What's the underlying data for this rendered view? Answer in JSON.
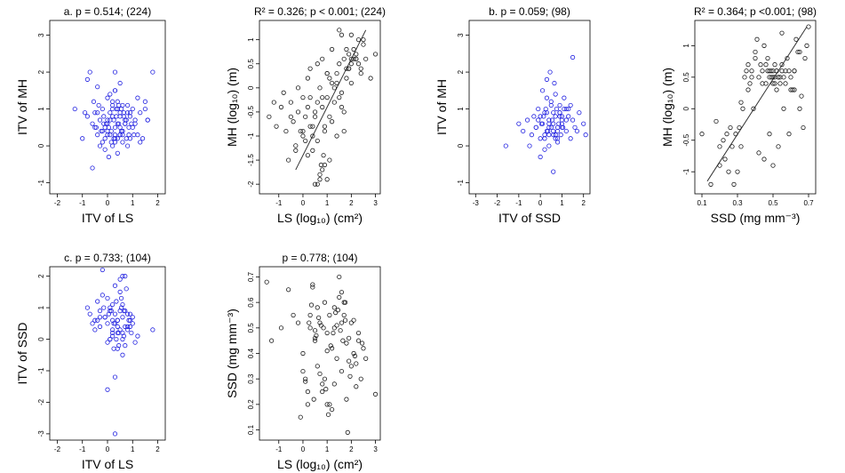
{
  "chart_data": [
    {
      "id": "a1",
      "type": "scatter",
      "title": "a. p = 0.514; (224)",
      "xlabel": "ITV of LS",
      "ylabel": "ITV of MH",
      "xlim": [
        -2.3,
        2.3
      ],
      "ylim": [
        -1.3,
        3.4
      ],
      "xticks": [
        -2,
        -1,
        0,
        1,
        2
      ],
      "yticks": [
        -1,
        0,
        1,
        2,
        3
      ],
      "color": "#1f1fe0",
      "x": [
        -1.3,
        -1.0,
        -0.9,
        -0.8,
        -0.7,
        -0.6,
        -0.55,
        -0.5,
        -0.45,
        -0.4,
        -0.35,
        -0.3,
        -0.25,
        -0.2,
        -0.15,
        -0.1,
        -0.05,
        0.0,
        0.05,
        0.1,
        0.15,
        0.2,
        0.25,
        0.3,
        0.35,
        0.4,
        0.45,
        0.5,
        0.55,
        0.6,
        0.65,
        0.7,
        0.75,
        0.8,
        0.85,
        0.9,
        0.95,
        1.0,
        1.05,
        1.1,
        1.2,
        1.3,
        1.4,
        1.5,
        1.6,
        1.8,
        -0.2,
        0.0,
        0.1,
        0.2,
        0.3,
        0.4,
        0.5,
        0.6,
        0.7,
        0.1,
        0.2,
        0.3,
        0.4,
        0.5,
        -0.3,
        -0.1,
        0.0,
        0.2,
        0.3,
        0.4,
        0.6,
        0.8,
        1.0,
        0.3,
        -0.6,
        0.3,
        0.5,
        0.9,
        1.2,
        0.0,
        0.2,
        0.4,
        0.6,
        0.8,
        -0.5,
        -0.2,
        0.1,
        0.3,
        0.5,
        0.7,
        0.9,
        -0.4,
        0.0,
        0.35,
        0.6,
        1.1,
        -0.1,
        0.25,
        0.45,
        0.55,
        0.65,
        0.75,
        0.15,
        0.05,
        -0.8,
        -0.4,
        1.6,
        1.3,
        0.85,
        -0.15,
        0.5,
        1.5
      ],
      "y": [
        1.0,
        0.2,
        0.9,
        0.8,
        2.0,
        0.6,
        1.2,
        0.9,
        0.5,
        0.3,
        1.1,
        0.7,
        0.4,
        1.0,
        0.8,
        0.2,
        0.6,
        1.3,
        0.5,
        0.9,
        0.4,
        1.1,
        0.7,
        0.3,
        0.8,
        1.2,
        0.6,
        0.5,
        1.0,
        0.4,
        0.9,
        0.7,
        0.2,
        1.1,
        0.5,
        0.8,
        0.6,
        1.0,
        0.3,
        0.7,
        1.3,
        0.9,
        0.2,
        1.0,
        0.7,
        2.0,
        0.1,
        0.6,
        0.3,
        0.8,
        0.5,
        0.2,
        0.9,
        0.4,
        0.6,
        1.4,
        1.2,
        1.5,
        1.0,
        0.3,
        0.0,
        -0.1,
        0.4,
        0.0,
        0.2,
        -0.2,
        0.1,
        0.0,
        0.5,
        2.0,
        -0.6,
        1.5,
        1.7,
        0.9,
        0.3,
        0.7,
        1.0,
        0.6,
        0.3,
        0.9,
        0.5,
        0.4,
        0.7,
        0.1,
        0.8,
        0.6,
        0.2,
        0.9,
        0.3,
        1.0,
        1.1,
        0.6,
        0.5,
        0.2,
        1.1,
        0.4,
        0.8,
        0.7,
        0.1,
        -0.3,
        1.8,
        1.6,
        0.7,
        0.1,
        0.3,
        0.6,
        0.3,
        1.2
      ]
    },
    {
      "id": "a2",
      "type": "scatter",
      "title": "R² = 0.326; p < 0.001; (224)",
      "xlabel": "LS (log₁₀) (cm²)",
      "ylabel": "MH (log₁₀) (m)",
      "xlim": [
        -1.8,
        3.2
      ],
      "ylim": [
        -2.2,
        1.4
      ],
      "xticks": [
        -1,
        0,
        1,
        2,
        3
      ],
      "yticks": [
        -2.0,
        -1.5,
        -1.0,
        -0.5,
        0.0,
        0.5,
        1.0
      ],
      "color": "#1a1a1a",
      "fit": {
        "x": [
          -0.3,
          2.6
        ],
        "y": [
          -1.7,
          1.2
        ]
      },
      "x": [
        -1.4,
        -1.1,
        -0.9,
        -0.7,
        -0.5,
        -0.4,
        -0.3,
        -0.2,
        -0.1,
        0.0,
        0.1,
        0.2,
        0.3,
        0.4,
        0.5,
        0.6,
        0.7,
        0.8,
        0.9,
        1.0,
        1.1,
        1.2,
        1.3,
        1.4,
        1.5,
        1.6,
        1.7,
        1.8,
        1.9,
        2.0,
        2.1,
        2.2,
        2.3,
        2.4,
        2.5,
        2.6,
        2.8,
        3.0,
        -1.2,
        -0.8,
        -0.6,
        -0.3,
        0.0,
        0.2,
        0.4,
        0.6,
        0.8,
        1.0,
        1.2,
        1.4,
        1.6,
        1.8,
        2.0,
        2.2,
        0.5,
        0.7,
        0.9,
        1.1,
        0.3,
        0.6,
        0.8,
        1.0,
        1.3,
        1.5,
        1.7,
        1.9,
        2.1,
        2.3,
        0.1,
        0.4,
        0.9,
        1.2,
        1.6,
        2.0,
        -0.2,
        0.2,
        0.5,
        0.8,
        1.1,
        1.4,
        1.8,
        2.4,
        0.6,
        0.7,
        0.75,
        0.85,
        1.0,
        1.5,
        2.0,
        2.2,
        2.5,
        1.9,
        1.7,
        -0.5,
        0.0,
        0.3
      ],
      "y": [
        -0.6,
        -0.8,
        -0.4,
        -0.9,
        -0.3,
        -0.7,
        -1.2,
        -0.5,
        -0.9,
        -1.0,
        -0.6,
        -1.4,
        -0.2,
        -0.8,
        -0.5,
        -1.1,
        0.0,
        -0.4,
        -0.9,
        -0.2,
        -0.6,
        0.1,
        -0.3,
        0.3,
        0.5,
        -0.1,
        0.6,
        0.4,
        0.7,
        0.5,
        0.8,
        0.6,
        1.0,
        0.3,
        0.9,
        0.6,
        0.2,
        0.7,
        -0.3,
        -0.1,
        -1.5,
        -1.3,
        -0.2,
        0.2,
        -1.0,
        -0.3,
        -1.7,
        -1.9,
        -0.7,
        -1.0,
        -0.4,
        0.2,
        0.1,
        0.7,
        -2.0,
        -1.8,
        -1.6,
        -1.5,
        0.4,
        0.5,
        0.6,
        0.3,
        0.0,
        -0.2,
        -0.5,
        0.4,
        0.6,
        0.5,
        -1.1,
        -1.3,
        -0.8,
        0.8,
        1.1,
        0.6,
        0.0,
        -0.4,
        -0.6,
        -0.2,
        0.2,
        0.1,
        0.8,
        0.4,
        -2.0,
        -1.9,
        -1.6,
        -1.4,
        0.3,
        1.2,
        1.1,
        0.6,
        1.0,
        0.4,
        -0.9,
        -0.6,
        -0.9,
        -0.8
      ]
    },
    {
      "id": "b1",
      "type": "scatter",
      "title": "b. p = 0.059; (98)",
      "xlabel": "ITV of SSD",
      "ylabel": "ITV of MH",
      "xlim": [
        -3.3,
        2.3
      ],
      "ylim": [
        -1.3,
        3.4
      ],
      "xticks": [
        -3,
        -2,
        -1,
        0,
        1,
        2
      ],
      "yticks": [
        -1,
        0,
        1,
        2,
        3
      ],
      "color": "#1f1fe0",
      "x": [
        -1.6,
        -1.0,
        -0.8,
        -0.6,
        -0.4,
        -0.3,
        -0.2,
        -0.1,
        0.0,
        0.1,
        0.2,
        0.3,
        0.4,
        0.5,
        0.6,
        0.7,
        0.8,
        0.9,
        1.0,
        1.1,
        1.2,
        1.3,
        1.4,
        1.5,
        1.6,
        1.8,
        2.0,
        2.1,
        -0.5,
        -0.2,
        0.0,
        0.2,
        0.4,
        0.6,
        0.8,
        1.0,
        1.2,
        1.4,
        0.1,
        0.3,
        0.5,
        0.7,
        0.9,
        1.1,
        0.0,
        0.2,
        0.4,
        0.6,
        0.8,
        -0.1,
        0.3,
        0.5,
        0.7,
        0.9,
        1.3,
        1.7,
        0.2,
        0.4,
        0.6,
        0.8,
        1.0,
        0.15,
        0.35,
        0.55,
        0.75,
        0.95,
        0.45,
        0.65,
        0.85,
        1.05,
        0.25,
        1.5,
        0.05,
        0.3,
        0.6,
        0.9,
        1.2,
        0.4,
        0.7,
        1.0
      ],
      "y": [
        0.0,
        0.6,
        0.4,
        0.7,
        0.3,
        0.8,
        0.5,
        1.0,
        0.2,
        0.6,
        0.9,
        0.4,
        0.7,
        1.1,
        0.3,
        0.8,
        0.5,
        0.9,
        0.6,
        1.0,
        0.4,
        0.8,
        1.1,
        0.7,
        0.5,
        0.9,
        0.6,
        0.3,
        0.0,
        0.5,
        0.8,
        0.3,
        0.6,
        0.9,
        0.4,
        0.7,
        1.0,
        0.2,
        1.5,
        1.3,
        1.2,
        1.4,
        1.1,
        1.3,
        -0.3,
        0.2,
        0.0,
        0.4,
        0.1,
        0.7,
        0.9,
        0.5,
        0.2,
        0.8,
        1.0,
        0.4,
        -0.1,
        0.3,
        0.6,
        0.2,
        0.5,
        0.8,
        0.4,
        0.7,
        1.0,
        0.3,
        2.0,
        1.7,
        0.6,
        0.5,
        1.0,
        2.4,
        0.6,
        1.8,
        -0.7,
        0.9,
        0.7,
        0.5,
        0.3,
        0.8
      ]
    },
    {
      "id": "b2",
      "type": "scatter",
      "title": "R² = 0.364; p <0.001; (98)",
      "xlabel": "SSD (mg mm⁻³)",
      "ylabel": "MH (log₁₀) (m)",
      "xlim": [
        0.06,
        0.74
      ],
      "ylim": [
        -1.35,
        1.4
      ],
      "xticks": [
        0.1,
        0.3,
        0.5,
        0.7
      ],
      "yticks": [
        -1.0,
        -0.5,
        0.0,
        0.5,
        1.0
      ],
      "color": "#1a1a1a",
      "fit": {
        "x": [
          0.13,
          0.69
        ],
        "y": [
          -1.15,
          1.3
        ]
      },
      "x": [
        0.1,
        0.15,
        0.18,
        0.2,
        0.22,
        0.24,
        0.25,
        0.27,
        0.28,
        0.3,
        0.31,
        0.32,
        0.33,
        0.35,
        0.36,
        0.38,
        0.4,
        0.41,
        0.42,
        0.43,
        0.44,
        0.45,
        0.46,
        0.47,
        0.48,
        0.49,
        0.5,
        0.5,
        0.51,
        0.51,
        0.52,
        0.52,
        0.53,
        0.54,
        0.55,
        0.55,
        0.56,
        0.57,
        0.58,
        0.59,
        0.6,
        0.61,
        0.62,
        0.63,
        0.65,
        0.66,
        0.67,
        0.68,
        0.69,
        0.7,
        0.2,
        0.23,
        0.26,
        0.29,
        0.32,
        0.34,
        0.37,
        0.39,
        0.42,
        0.45,
        0.48,
        0.5,
        0.53,
        0.56,
        0.59,
        0.62,
        0.65,
        0.47,
        0.49,
        0.51,
        0.53,
        0.55,
        0.57,
        0.5,
        0.52,
        0.54,
        0.48,
        0.46,
        0.44,
        0.6,
        0.62,
        0.64,
        0.4,
        0.38,
        0.36
      ],
      "y": [
        -0.4,
        -1.2,
        -0.2,
        -0.9,
        -0.5,
        -0.4,
        -1.0,
        -0.6,
        -1.2,
        -1.0,
        -0.3,
        0.1,
        0.0,
        0.6,
        0.7,
        0.6,
        0.9,
        1.1,
        0.5,
        0.7,
        0.6,
        1.0,
        0.4,
        0.8,
        0.5,
        0.6,
        0.6,
        0.4,
        0.5,
        0.7,
        0.3,
        0.6,
        0.5,
        0.4,
        0.7,
        1.2,
        0.5,
        0.6,
        0.8,
        0.6,
        0.5,
        0.3,
        0.6,
        1.1,
        0.9,
        0.2,
        -0.3,
        0.8,
        1.0,
        1.3,
        -0.6,
        -0.8,
        -0.3,
        -0.4,
        -0.6,
        0.5,
        0.4,
        0.0,
        -0.7,
        -0.8,
        -0.4,
        -0.9,
        -0.6,
        0.0,
        -0.4,
        0.3,
        0.0,
        0.6,
        0.5,
        0.4,
        0.5,
        0.6,
        0.4,
        0.5,
        0.6,
        0.5,
        0.6,
        0.7,
        0.4,
        0.3,
        0.6,
        0.9,
        0.8,
        0.5,
        0.3
      ]
    },
    {
      "id": "c1",
      "type": "scatter",
      "title": "c. p = 0.733; (104)",
      "xlabel": "ITV of LS",
      "ylabel": "ITV of SSD",
      "xlim": [
        -2.3,
        2.3
      ],
      "ylim": [
        -3.2,
        2.3
      ],
      "xticks": [
        -2,
        -1,
        0,
        1,
        2
      ],
      "yticks": [
        -3,
        -2,
        -1,
        0,
        1,
        2
      ],
      "color": "#1f1fe0",
      "x": [
        -0.8,
        -0.7,
        -0.5,
        -0.4,
        -0.3,
        -0.2,
        -0.1,
        0.0,
        0.1,
        0.2,
        0.3,
        0.4,
        0.5,
        0.6,
        0.7,
        0.8,
        0.9,
        1.0,
        1.2,
        1.8,
        -0.6,
        -0.3,
        0.0,
        0.2,
        0.4,
        0.6,
        0.8,
        -0.5,
        -0.1,
        0.1,
        0.3,
        0.5,
        0.7,
        0.9,
        0.0,
        0.2,
        0.4,
        0.6,
        0.8,
        1.0,
        -0.2,
        0.1,
        0.3,
        0.5,
        0.7,
        0.2,
        0.4,
        0.6,
        0.15,
        0.35,
        0.55,
        0.75,
        0.25,
        0.45,
        0.65,
        -0.4,
        0.0,
        0.3,
        0.6,
        0.1,
        0.4,
        0.7,
        0.5,
        0.3,
        0.2,
        0.05,
        0.25,
        0.45,
        0.65,
        0.85,
        -0.15,
        0.35,
        0.55,
        0.95,
        1.1,
        -0.3,
        0.9,
        0.6
      ],
      "y": [
        1.0,
        0.8,
        0.6,
        1.2,
        0.4,
        2.2,
        0.7,
        0.5,
        1.0,
        0.3,
        0.8,
        0.6,
        1.5,
        0.2,
        0.9,
        0.4,
        0.6,
        0.7,
        0.1,
        0.3,
        0.5,
        0.9,
        1.3,
        0.6,
        0.2,
        1.1,
        0.8,
        0.3,
        0.7,
        0.0,
        0.5,
        0.9,
        0.4,
        0.8,
        -0.1,
        0.2,
        0.6,
        0.0,
        0.3,
        0.5,
        1.4,
        0.9,
        1.7,
        1.9,
        2.0,
        0.1,
        0.4,
        0.7,
        0.9,
        1.2,
        1.0,
        1.6,
        -0.3,
        -0.2,
        0.1,
        0.6,
        -1.6,
        -1.2,
        -0.5,
        0.0,
        -0.3,
        -0.2,
        0.3,
        -3.0,
        1.1,
        0.8,
        0.5,
        0.2,
        0.9,
        0.6,
        1.0,
        0.0,
        1.3,
        0.2,
        -0.1,
        0.7,
        0.4,
        2.0
      ]
    },
    {
      "id": "c2",
      "type": "scatter",
      "title": "p = 0.778; (104)",
      "xlabel": "LS (log₁₀) (cm²)",
      "ylabel": "SSD (mg mm⁻³)",
      "xlim": [
        -1.8,
        3.2
      ],
      "ylim": [
        0.06,
        0.74
      ],
      "xticks": [
        -1,
        0,
        1,
        2,
        3
      ],
      "yticks": [
        0.1,
        0.2,
        0.3,
        0.4,
        0.5,
        0.6,
        0.7
      ],
      "color": "#1a1a1a",
      "x": [
        -1.5,
        -1.3,
        -0.9,
        -0.6,
        -0.4,
        -0.2,
        0.0,
        0.1,
        0.2,
        0.3,
        0.4,
        0.5,
        0.6,
        0.7,
        0.8,
        0.9,
        1.0,
        1.1,
        1.2,
        1.3,
        1.4,
        1.5,
        1.6,
        1.7,
        1.8,
        1.9,
        2.0,
        2.1,
        2.2,
        2.3,
        2.4,
        2.5,
        2.6,
        3.0,
        -0.1,
        0.3,
        0.6,
        0.9,
        1.2,
        1.5,
        1.8,
        2.1,
        0.2,
        0.5,
        0.8,
        1.1,
        1.4,
        1.7,
        2.0,
        2.3,
        0.4,
        0.7,
        1.0,
        1.3,
        1.6,
        1.9,
        0.0,
        0.35,
        0.55,
        0.75,
        0.95,
        1.15,
        1.35,
        1.55,
        1.75,
        1.95,
        2.15,
        0.45,
        0.65,
        0.85,
        1.05,
        1.25,
        1.45,
        1.65,
        1.85,
        0.1,
        1.0,
        1.6,
        2.2,
        1.3,
        0.25,
        0.5,
        1.75,
        2.45
      ],
      "y": [
        0.68,
        0.45,
        0.5,
        0.65,
        0.55,
        0.52,
        0.4,
        0.3,
        0.25,
        0.55,
        0.66,
        0.45,
        0.35,
        0.52,
        0.28,
        0.6,
        0.48,
        0.2,
        0.42,
        0.58,
        0.51,
        0.7,
        0.33,
        0.55,
        0.22,
        0.46,
        0.52,
        0.4,
        0.36,
        0.48,
        0.3,
        0.42,
        0.38,
        0.24,
        0.15,
        0.5,
        0.58,
        0.3,
        0.18,
        0.62,
        0.44,
        0.53,
        0.2,
        0.46,
        0.25,
        0.55,
        0.38,
        0.6,
        0.35,
        0.45,
        0.67,
        0.32,
        0.41,
        0.28,
        0.52,
        0.37,
        0.33,
        0.59,
        0.47,
        0.51,
        0.26,
        0.43,
        0.56,
        0.49,
        0.6,
        0.31,
        0.39,
        0.22,
        0.54,
        0.5,
        0.16,
        0.48,
        0.57,
        0.45,
        0.09,
        0.29,
        0.2,
        0.64,
        0.27,
        0.5,
        0.52,
        0.49,
        0.53,
        0.44
      ]
    }
  ]
}
